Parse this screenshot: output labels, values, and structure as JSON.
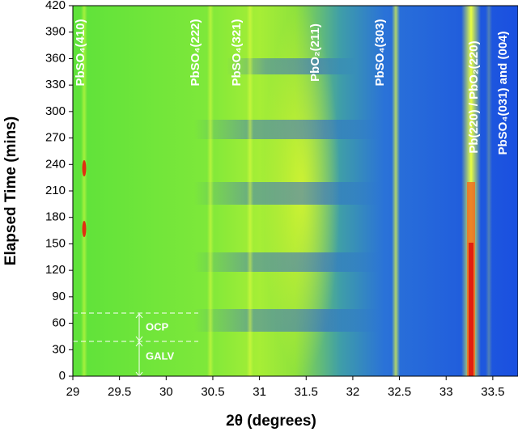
{
  "chart_data": {
    "type": "heatmap",
    "x_label": "2θ (degrees)",
    "y_label": "Elapsed Time (mins)",
    "xlim": [
      29,
      33.77
    ],
    "xticks": [
      29,
      29.5,
      30,
      30.5,
      31,
      31.5,
      32,
      32.5,
      33,
      33.5
    ],
    "ylim": [
      0,
      420
    ],
    "yticks": [
      0,
      30,
      60,
      90,
      120,
      150,
      180,
      210,
      240,
      270,
      300,
      330,
      360,
      390,
      420
    ],
    "annotations": [
      "PbSO₄(410)",
      "PbSO₄(222)",
      "PbSO₄(321)",
      "PbO₂(211)",
      "PbSO₄(303)",
      "Pb(220) / PbO₂(220)",
      "PbSO₄(031) and (004)"
    ],
    "phases": [
      "OCP",
      "GALV"
    ]
  }
}
